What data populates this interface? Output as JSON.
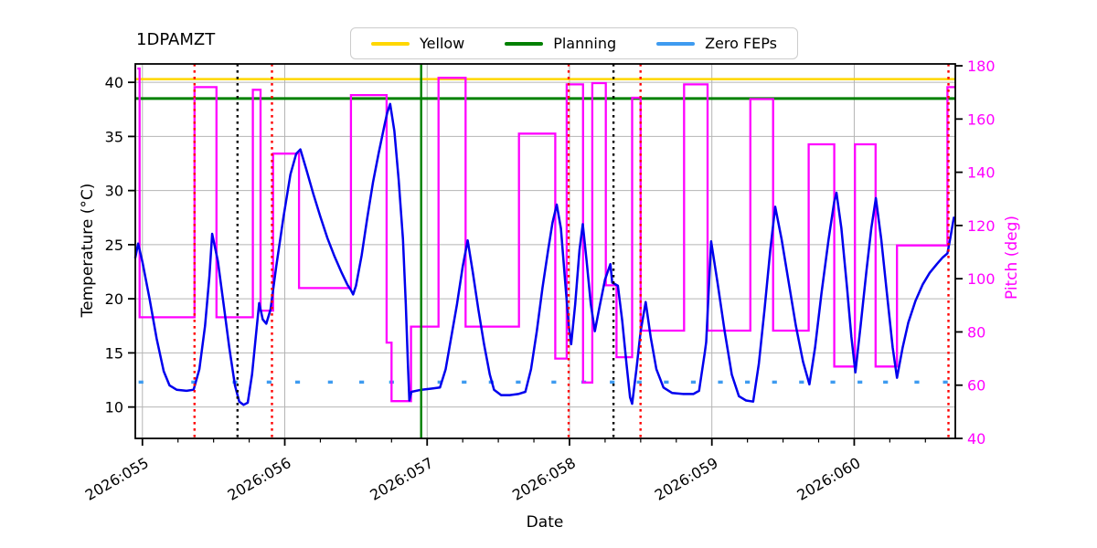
{
  "title": "1DPAMZT",
  "legend": {
    "items": [
      {
        "label": "Yellow",
        "color": "#ffd700"
      },
      {
        "label": "Planning",
        "color": "#008000"
      },
      {
        "label": "Zero FEPs",
        "color": "#3e9bf0"
      }
    ]
  },
  "chart_data": {
    "type": "line",
    "title": "1DPAMZT",
    "xlabel": "Date",
    "ylabel_left": "Temperature (°C)",
    "ylabel_right": "Pitch (deg)",
    "x_unit": "day_of_year_2026",
    "xlim": [
      54.95,
      60.71
    ],
    "ylim_left": [
      7.1,
      41.7
    ],
    "ylim_right": [
      40,
      180.7
    ],
    "grid": true,
    "x_ticks": [
      {
        "value": 55,
        "label": "2026:055"
      },
      {
        "value": 56,
        "label": "2026:056"
      },
      {
        "value": 57,
        "label": "2026:057"
      },
      {
        "value": 58,
        "label": "2026:058"
      },
      {
        "value": 59,
        "label": "2026:059"
      },
      {
        "value": 60,
        "label": "2026:060"
      }
    ],
    "x_minor_step": 0.25,
    "y_ticks_left": [
      10,
      15,
      20,
      25,
      30,
      35,
      40
    ],
    "y_ticks_right": [
      40,
      60,
      80,
      100,
      120,
      140,
      160,
      180
    ],
    "limits": {
      "yellow_limit_temp": 40.3,
      "planning_limit_temp": 38.5
    },
    "vlines": [
      {
        "x": 55.366,
        "color": "#ff0000",
        "style": "dotted"
      },
      {
        "x": 55.668,
        "color": "#000000",
        "style": "dotted"
      },
      {
        "x": 55.91,
        "color": "#ff0000",
        "style": "dotted"
      },
      {
        "x": 56.958,
        "color": "#008000",
        "style": "solid"
      },
      {
        "x": 57.994,
        "color": "#ff0000",
        "style": "dotted"
      },
      {
        "x": 58.309,
        "color": "#000000",
        "style": "dotted"
      },
      {
        "x": 58.499,
        "color": "#ff0000",
        "style": "dotted"
      },
      {
        "x": 60.662,
        "color": "#ff0000",
        "style": "dotted"
      }
    ],
    "series": {
      "temperature": {
        "name": "1DPAMZT",
        "color": "#0000ee",
        "points": [
          [
            54.95,
            23.8
          ],
          [
            54.97,
            25.1
          ],
          [
            55.0,
            23.4
          ],
          [
            55.05,
            20.0
          ],
          [
            55.1,
            16.3
          ],
          [
            55.15,
            13.3
          ],
          [
            55.19,
            12.0
          ],
          [
            55.24,
            11.6
          ],
          [
            55.31,
            11.5
          ],
          [
            55.36,
            11.6
          ],
          [
            55.4,
            13.5
          ],
          [
            55.44,
            17.5
          ],
          [
            55.47,
            22.0
          ],
          [
            55.49,
            26.0
          ],
          [
            55.53,
            23.5
          ],
          [
            55.57,
            19.5
          ],
          [
            55.61,
            15.5
          ],
          [
            55.65,
            12.0
          ],
          [
            55.68,
            10.5
          ],
          [
            55.71,
            10.2
          ],
          [
            55.74,
            10.4
          ],
          [
            55.77,
            13.0
          ],
          [
            55.8,
            17.0
          ],
          [
            55.82,
            19.6
          ],
          [
            55.845,
            18.1
          ],
          [
            55.87,
            17.7
          ],
          [
            55.9,
            19.0
          ],
          [
            55.94,
            23.0
          ],
          [
            55.99,
            27.5
          ],
          [
            56.04,
            31.5
          ],
          [
            56.08,
            33.4
          ],
          [
            56.11,
            33.8
          ],
          [
            56.15,
            32.0
          ],
          [
            56.2,
            29.7
          ],
          [
            56.25,
            27.6
          ],
          [
            56.3,
            25.6
          ],
          [
            56.35,
            23.9
          ],
          [
            56.4,
            22.4
          ],
          [
            56.44,
            21.3
          ],
          [
            56.465,
            20.8
          ],
          [
            56.48,
            20.4
          ],
          [
            56.5,
            21.2
          ],
          [
            56.54,
            24.0
          ],
          [
            56.58,
            27.5
          ],
          [
            56.62,
            30.8
          ],
          [
            56.66,
            33.5
          ],
          [
            56.7,
            36.0
          ],
          [
            56.72,
            37.2
          ],
          [
            56.74,
            38.0
          ],
          [
            56.77,
            35.5
          ],
          [
            56.8,
            31.0
          ],
          [
            56.83,
            25.5
          ],
          [
            56.85,
            19.5
          ],
          [
            56.865,
            14.0
          ],
          [
            56.875,
            10.6
          ],
          [
            56.89,
            11.4
          ],
          [
            56.96,
            11.6
          ],
          [
            57.03,
            11.7
          ],
          [
            57.09,
            11.8
          ],
          [
            57.13,
            13.5
          ],
          [
            57.17,
            16.5
          ],
          [
            57.21,
            19.5
          ],
          [
            57.25,
            23.0
          ],
          [
            57.285,
            25.4
          ],
          [
            57.32,
            22.5
          ],
          [
            57.36,
            19.0
          ],
          [
            57.4,
            15.8
          ],
          [
            57.44,
            13.0
          ],
          [
            57.47,
            11.6
          ],
          [
            57.52,
            11.1
          ],
          [
            57.58,
            11.1
          ],
          [
            57.64,
            11.2
          ],
          [
            57.69,
            11.4
          ],
          [
            57.73,
            13.5
          ],
          [
            57.77,
            17.0
          ],
          [
            57.81,
            21.0
          ],
          [
            57.85,
            24.5
          ],
          [
            57.88,
            27.0
          ],
          [
            57.91,
            28.7
          ],
          [
            57.94,
            26.5
          ],
          [
            57.97,
            21.5
          ],
          [
            57.995,
            17.5
          ],
          [
            58.012,
            15.8
          ],
          [
            58.04,
            19.5
          ],
          [
            58.07,
            24.5
          ],
          [
            58.093,
            26.9
          ],
          [
            58.12,
            23.5
          ],
          [
            58.15,
            19.5
          ],
          [
            58.178,
            17.0
          ],
          [
            58.21,
            19.2
          ],
          [
            58.25,
            21.8
          ],
          [
            58.287,
            23.2
          ],
          [
            58.3,
            21.5
          ],
          [
            58.34,
            21.2
          ],
          [
            58.37,
            18.0
          ],
          [
            58.4,
            14.0
          ],
          [
            58.425,
            10.9
          ],
          [
            58.44,
            10.3
          ],
          [
            58.47,
            13.5
          ],
          [
            58.5,
            17.0
          ],
          [
            58.535,
            19.7
          ],
          [
            58.57,
            16.5
          ],
          [
            58.61,
            13.5
          ],
          [
            58.66,
            11.8
          ],
          [
            58.72,
            11.3
          ],
          [
            58.8,
            11.2
          ],
          [
            58.87,
            11.2
          ],
          [
            58.91,
            11.5
          ],
          [
            58.95,
            15.0
          ],
          [
            58.96,
            16.0
          ],
          [
            58.995,
            25.3
          ],
          [
            59.04,
            21.5
          ],
          [
            59.09,
            17.0
          ],
          [
            59.14,
            13.0
          ],
          [
            59.19,
            11.0
          ],
          [
            59.24,
            10.6
          ],
          [
            59.29,
            10.5
          ],
          [
            59.33,
            14.0
          ],
          [
            59.37,
            19.0
          ],
          [
            59.41,
            24.5
          ],
          [
            59.445,
            28.5
          ],
          [
            59.49,
            25.5
          ],
          [
            59.54,
            21.5
          ],
          [
            59.59,
            17.5
          ],
          [
            59.64,
            14.2
          ],
          [
            59.685,
            12.1
          ],
          [
            59.725,
            15.5
          ],
          [
            59.77,
            20.5
          ],
          [
            59.82,
            25.5
          ],
          [
            59.86,
            29.0
          ],
          [
            59.875,
            29.8
          ],
          [
            59.91,
            26.5
          ],
          [
            59.95,
            21.0
          ],
          [
            59.98,
            16.5
          ],
          [
            60.008,
            13.2
          ],
          [
            60.045,
            17.5
          ],
          [
            60.085,
            22.5
          ],
          [
            60.12,
            26.5
          ],
          [
            60.152,
            29.3
          ],
          [
            60.19,
            25.5
          ],
          [
            60.23,
            20.5
          ],
          [
            60.27,
            15.5
          ],
          [
            60.3,
            12.7
          ],
          [
            60.34,
            15.5
          ],
          [
            60.38,
            17.8
          ],
          [
            60.43,
            19.8
          ],
          [
            60.48,
            21.3
          ],
          [
            60.53,
            22.4
          ],
          [
            60.58,
            23.2
          ],
          [
            60.62,
            23.8
          ],
          [
            60.655,
            24.2
          ],
          [
            60.675,
            25.6
          ],
          [
            60.7,
            27.5
          ]
        ]
      },
      "pitch": {
        "name": "Pitch",
        "color": "#ff00ff",
        "segments": [
          [
            54.965,
            54.98,
            179.0
          ],
          [
            54.98,
            55.366,
            85.5
          ],
          [
            55.366,
            55.52,
            172.0
          ],
          [
            55.52,
            55.776,
            85.5
          ],
          [
            55.776,
            55.83,
            171.0
          ],
          [
            55.83,
            55.918,
            88.0
          ],
          [
            55.918,
            56.1,
            147.0
          ],
          [
            56.1,
            56.465,
            96.5
          ],
          [
            56.465,
            56.715,
            169.0
          ],
          [
            56.715,
            56.75,
            76.0
          ],
          [
            56.75,
            56.887,
            54.0
          ],
          [
            56.887,
            57.08,
            82.0
          ],
          [
            57.08,
            57.27,
            175.5
          ],
          [
            57.27,
            57.645,
            82.0
          ],
          [
            57.645,
            57.9,
            154.5
          ],
          [
            57.9,
            57.98,
            70.0
          ],
          [
            57.98,
            58.095,
            173.0
          ],
          [
            58.095,
            58.16,
            61.0
          ],
          [
            58.16,
            58.255,
            173.5
          ],
          [
            58.255,
            58.33,
            97.5
          ],
          [
            58.33,
            58.44,
            70.5
          ],
          [
            58.44,
            58.5,
            168.0
          ],
          [
            58.5,
            58.805,
            80.5
          ],
          [
            58.805,
            58.97,
            173.0
          ],
          [
            58.97,
            59.27,
            80.5
          ],
          [
            59.27,
            59.43,
            167.5
          ],
          [
            59.43,
            59.68,
            80.5
          ],
          [
            59.68,
            59.86,
            150.5
          ],
          [
            59.86,
            60.005,
            67.0
          ],
          [
            60.005,
            60.15,
            150.5
          ],
          [
            60.15,
            60.3,
            67.0
          ],
          [
            60.3,
            60.655,
            112.5
          ],
          [
            60.655,
            60.71,
            172.0
          ]
        ]
      },
      "zero_feps": {
        "name": "Zero FEPs",
        "color": "#3e9bf0",
        "level_temp": 12.3,
        "x": [
          54.99,
          55.36,
          55.65,
          55.89,
          56.09,
          56.32,
          56.54,
          56.75,
          57.09,
          57.26,
          57.45,
          57.64,
          57.89,
          58.1,
          58.3,
          58.49,
          58.68,
          58.87,
          59.06,
          59.25,
          59.44,
          59.63,
          59.85,
          60.04,
          60.22,
          60.44,
          60.64
        ]
      }
    }
  }
}
